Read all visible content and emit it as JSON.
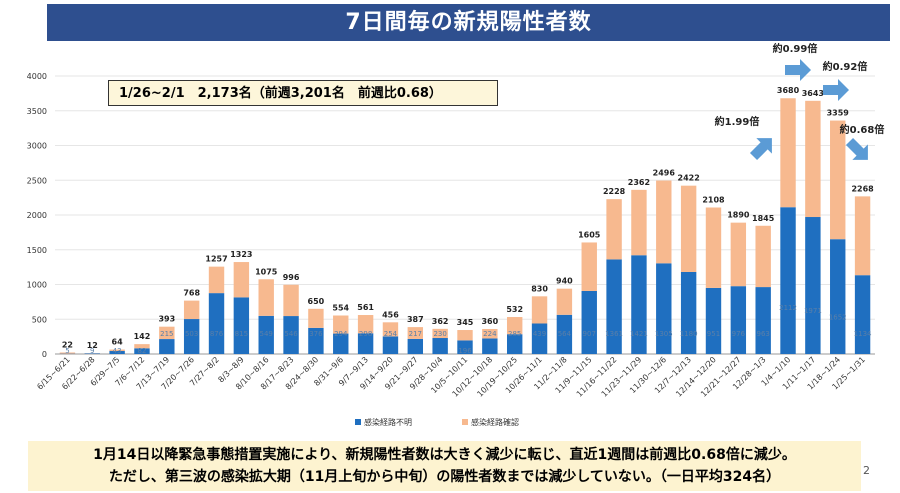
{
  "title": "7日間毎の新規陽性者数",
  "summary": "1/26~2/1　2,173名（前週3,201名　前週比0.68）",
  "footer": {
    "line1": "1月14日以降緊急事態措置実施により、新規陽性者数は大きく減少に転じ、直近1週間は前週比0.68倍に減少。",
    "line2": "ただし、第三波の感染拡大期（11月上旬から中旬）の陽性者数までは減少していない。（一日平均324名）"
  },
  "page_number": "2",
  "colors": {
    "unknown": "#1f6fc0",
    "confirmed": "#f7b98f",
    "title_bg": "#2e4f8f",
    "arrow": "#5b9bd5"
  },
  "chart_data": {
    "type": "bar",
    "stacked": true,
    "ylim": [
      0,
      4000
    ],
    "yticks": [
      "0",
      "500",
      "1000",
      "1500",
      "2000",
      "2500",
      "3000",
      "3500",
      "4000"
    ],
    "categories": [
      "6/15~6/21",
      "6/22~6/28",
      "6/29~7/5",
      "7/6~7/12",
      "7/13~7/19",
      "7/20~7/26",
      "7/27~8/2",
      "8/3~8/9",
      "8/10~8/16",
      "8/17~8/23",
      "8/24~8/30",
      "8/31~9/6",
      "9/7~9/13",
      "9/14~9/20",
      "9/21~9/27",
      "9/28~10/4",
      "10/5~10/11",
      "10/12~10/18",
      "10/19~10/25",
      "10/26~11/1",
      "11/2~11/8",
      "11/9~11/15",
      "11/16~11/22",
      "11/23~11/29",
      "11/30~12/6",
      "12/7~12/13",
      "12/14~12/20",
      "12/21~12/27",
      "12/28~1/3",
      "1/4~1/10",
      "1/11~1/17",
      "1/18~1/24",
      "1/25~1/31"
    ],
    "series": [
      {
        "name": "感染経路不明",
        "values": [
          5,
          9,
          43,
          82,
          215,
          503,
          876,
          815,
          549,
          546,
          376,
          294,
          298,
          254,
          217,
          230,
          196,
          224,
          285,
          439,
          564,
          907,
          1361,
          1421,
          1305,
          1180,
          951,
          976,
          963,
          2112,
          1971,
          1652,
          1134
        ]
      },
      {
        "name": "感染経路確認",
        "values": [
          17,
          3,
          21,
          60,
          178,
          265,
          381,
          508,
          526,
          450,
          274,
          260,
          263,
          202,
          170,
          132,
          149,
          136,
          247,
          391,
          376,
          698,
          867,
          941,
          1191,
          1242,
          1157,
          914,
          882,
          1568,
          1672,
          1707,
          1134
        ]
      }
    ],
    "totals": [
      "22",
      "12",
      "64",
      "142",
      "393",
      "768",
      "1257",
      "1323",
      "1075",
      "996",
      "650",
      "554",
      "561",
      "456",
      "387",
      "362",
      "345",
      "360",
      "532",
      "830",
      "940",
      "1605",
      "2228",
      "2362",
      "2496",
      "2422",
      "2108",
      "1890",
      "1845",
      "3680",
      "3643",
      "3359",
      "2268"
    ],
    "inner_labels": [
      "5",
      "9",
      "43",
      "82",
      "215",
      "503",
      "876",
      "815",
      "549",
      "546",
      "376",
      "294",
      "298",
      "254",
      "217",
      "230",
      "196",
      "224",
      "285",
      "439",
      "564",
      "907",
      "1361",
      "1421",
      "1305",
      "1180",
      "951",
      "976",
      "963",
      "2112",
      "1971",
      "1652",
      "1134"
    ],
    "ratios": [
      {
        "text": "約1.99倍",
        "bar": 29
      },
      {
        "text": "約0.99倍",
        "bar": 30
      },
      {
        "text": "約0.92倍",
        "bar": 31
      },
      {
        "text": "約0.68倍",
        "bar": 32
      }
    ]
  }
}
